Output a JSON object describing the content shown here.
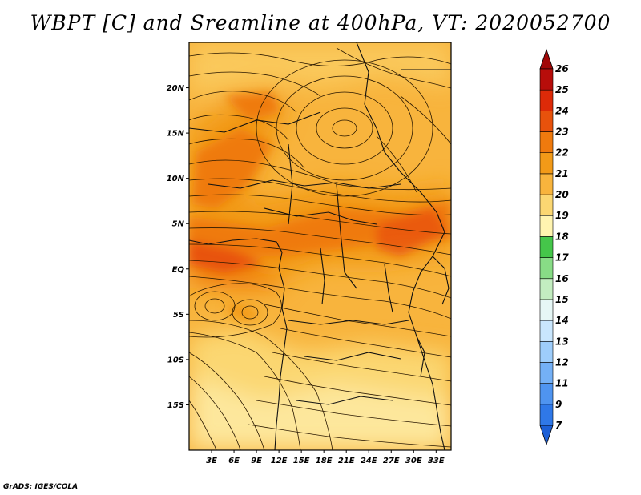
{
  "title": "WBPT [C] and Sreamline at 400hPa, VT: 2020052700",
  "credit": "GrADS: IGES/COLA",
  "map": {
    "lon_range": [
      0,
      35
    ],
    "lat_range": [
      -20,
      25
    ],
    "x_ticks": [
      {
        "value": 3,
        "label": "3E"
      },
      {
        "value": 6,
        "label": "6E"
      },
      {
        "value": 9,
        "label": "9E"
      },
      {
        "value": 12,
        "label": "12E"
      },
      {
        "value": 15,
        "label": "15E"
      },
      {
        "value": 18,
        "label": "18E"
      },
      {
        "value": 21,
        "label": "21E"
      },
      {
        "value": 24,
        "label": "24E"
      },
      {
        "value": 27,
        "label": "27E"
      },
      {
        "value": 30,
        "label": "30E"
      },
      {
        "value": 33,
        "label": "33E"
      }
    ],
    "y_ticks": [
      {
        "value": 20,
        "label": "20N"
      },
      {
        "value": 15,
        "label": "15N"
      },
      {
        "value": 10,
        "label": "10N"
      },
      {
        "value": 5,
        "label": "5N"
      },
      {
        "value": 0,
        "label": "EQ"
      },
      {
        "value": -5,
        "label": "5S"
      },
      {
        "value": -10,
        "label": "10S"
      },
      {
        "value": -15,
        "label": "15S"
      }
    ]
  },
  "colorbar": {
    "levels": [
      "7",
      "9",
      "11",
      "12",
      "13",
      "14",
      "15",
      "16",
      "17",
      "18",
      "19",
      "20",
      "21",
      "22",
      "23",
      "24",
      "25",
      "26"
    ],
    "colors": [
      "#1c5fd6",
      "#2f78e8",
      "#4f94f0",
      "#74b0f6",
      "#9ecdfb",
      "#c9e6fd",
      "#e6f7f6",
      "#c3edc0",
      "#88dc86",
      "#45c64a",
      "#fff4b0",
      "#fbd772",
      "#f8b43d",
      "#f29a18",
      "#ef7a0e",
      "#e8520c",
      "#dd2a08",
      "#b70d0a",
      "#a10808"
    ]
  }
}
